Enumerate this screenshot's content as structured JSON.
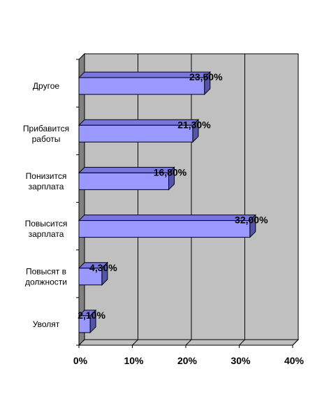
{
  "chart_data": {
    "type": "bar",
    "orientation": "horizontal",
    "style": "3d",
    "title": "",
    "xlabel": "",
    "ylabel": "",
    "categories": [
      "Уволят",
      "Повысят в должности",
      "Повысится зарплата",
      "Понизится зарплата",
      "Прибавится работы",
      "Другое"
    ],
    "category_lines": [
      [
        "Уволят"
      ],
      [
        "Повысят в",
        "должности"
      ],
      [
        "Повысится",
        "зарплата"
      ],
      [
        "Понизится",
        "зарплата"
      ],
      [
        "Прибавится",
        "работы"
      ],
      [
        "Другое"
      ]
    ],
    "values": [
      2.1,
      4.3,
      32.0,
      16.8,
      21.3,
      23.5
    ],
    "data_labels": [
      "2,10%",
      "4,30%",
      "32,00%",
      "16,80%",
      "21,30%",
      "23,50%"
    ],
    "xlim": [
      0,
      40
    ],
    "ticks": [
      0,
      10,
      20,
      30,
      40
    ],
    "tick_labels": [
      "0%",
      "10%",
      "20%",
      "30%",
      "40%"
    ],
    "grid": true,
    "legend": "none",
    "colors": {
      "bar_front": "#9999ff",
      "bar_top": "#7777dd",
      "bar_side": "#5555aa",
      "wall": "#c0c0c0",
      "side_wall": "#808080",
      "floor": "#c0c0c0",
      "grid": "#000000"
    }
  }
}
